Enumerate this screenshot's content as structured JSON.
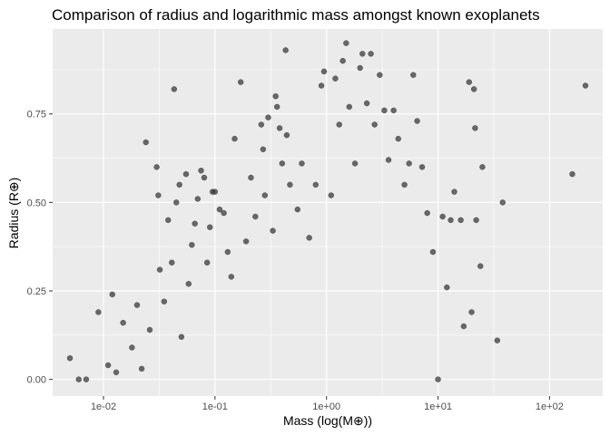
{
  "chart_data": {
    "type": "scatter",
    "title": "Comparison of radius and logarithmic mass amongst known exoplanets",
    "xlabel": "Mass (log(M⊕))",
    "ylabel": "Radius (R⊕)",
    "x_scale": "log10",
    "xlim": [
      0.0035,
      300
    ],
    "ylim": [
      -0.047,
      0.99
    ],
    "x_ticks": [
      {
        "value": 0.01,
        "label": "1e-02"
      },
      {
        "value": 0.1,
        "label": "1e-01"
      },
      {
        "value": 1,
        "label": "1e+00"
      },
      {
        "value": 10,
        "label": "1e+01"
      },
      {
        "value": 100,
        "label": "1e+02"
      }
    ],
    "y_ticks": [
      {
        "value": 0,
        "label": "0.00"
      },
      {
        "value": 0.25,
        "label": "0.25"
      },
      {
        "value": 0.5,
        "label": "0.50"
      },
      {
        "value": 0.75,
        "label": "0.75"
      }
    ],
    "grid": true,
    "legend": "none",
    "colors": {
      "panel": "#ebebeb",
      "grid_major": "#ffffff",
      "point": "#333333",
      "tick_text": "#4d4d4d"
    },
    "series": [
      {
        "points": [
          {
            "x": 0.005,
            "y": 0.06
          },
          {
            "x": 0.006,
            "y": 0.0
          },
          {
            "x": 0.007,
            "y": 0.0
          },
          {
            "x": 0.009,
            "y": 0.19
          },
          {
            "x": 0.011,
            "y": 0.04
          },
          {
            "x": 0.012,
            "y": 0.24
          },
          {
            "x": 0.013,
            "y": 0.02
          },
          {
            "x": 0.015,
            "y": 0.16
          },
          {
            "x": 0.018,
            "y": 0.09
          },
          {
            "x": 0.02,
            "y": 0.21
          },
          {
            "x": 0.022,
            "y": 0.03
          },
          {
            "x": 0.024,
            "y": 0.67
          },
          {
            "x": 0.026,
            "y": 0.14
          },
          {
            "x": 0.03,
            "y": 0.6
          },
          {
            "x": 0.031,
            "y": 0.52
          },
          {
            "x": 0.032,
            "y": 0.31
          },
          {
            "x": 0.035,
            "y": 0.22
          },
          {
            "x": 0.038,
            "y": 0.45
          },
          {
            "x": 0.041,
            "y": 0.33
          },
          {
            "x": 0.043,
            "y": 0.82
          },
          {
            "x": 0.045,
            "y": 0.5
          },
          {
            "x": 0.048,
            "y": 0.55
          },
          {
            "x": 0.05,
            "y": 0.12
          },
          {
            "x": 0.055,
            "y": 0.58
          },
          {
            "x": 0.058,
            "y": 0.27
          },
          {
            "x": 0.062,
            "y": 0.38
          },
          {
            "x": 0.066,
            "y": 0.44
          },
          {
            "x": 0.07,
            "y": 0.51
          },
          {
            "x": 0.075,
            "y": 0.59
          },
          {
            "x": 0.08,
            "y": 0.57
          },
          {
            "x": 0.085,
            "y": 0.33
          },
          {
            "x": 0.09,
            "y": 0.43
          },
          {
            "x": 0.095,
            "y": 0.53
          },
          {
            "x": 0.1,
            "y": 0.53
          },
          {
            "x": 0.11,
            "y": 0.48
          },
          {
            "x": 0.12,
            "y": 0.47
          },
          {
            "x": 0.13,
            "y": 0.36
          },
          {
            "x": 0.14,
            "y": 0.29
          },
          {
            "x": 0.15,
            "y": 0.68
          },
          {
            "x": 0.17,
            "y": 0.84
          },
          {
            "x": 0.19,
            "y": 0.39
          },
          {
            "x": 0.21,
            "y": 0.57
          },
          {
            "x": 0.23,
            "y": 0.46
          },
          {
            "x": 0.26,
            "y": 0.72
          },
          {
            "x": 0.27,
            "y": 0.65
          },
          {
            "x": 0.28,
            "y": 0.52
          },
          {
            "x": 0.3,
            "y": 0.74
          },
          {
            "x": 0.33,
            "y": 0.42
          },
          {
            "x": 0.35,
            "y": 0.8
          },
          {
            "x": 0.36,
            "y": 0.77
          },
          {
            "x": 0.38,
            "y": 0.71
          },
          {
            "x": 0.4,
            "y": 0.61
          },
          {
            "x": 0.43,
            "y": 0.93
          },
          {
            "x": 0.44,
            "y": 0.69
          },
          {
            "x": 0.47,
            "y": 0.55
          },
          {
            "x": 0.55,
            "y": 0.48
          },
          {
            "x": 0.6,
            "y": 0.61
          },
          {
            "x": 0.7,
            "y": 0.4
          },
          {
            "x": 0.8,
            "y": 0.55
          },
          {
            "x": 0.9,
            "y": 0.83
          },
          {
            "x": 0.95,
            "y": 0.87
          },
          {
            "x": 1.1,
            "y": 0.52
          },
          {
            "x": 1.2,
            "y": 0.85
          },
          {
            "x": 1.3,
            "y": 0.72
          },
          {
            "x": 1.4,
            "y": 0.9
          },
          {
            "x": 1.5,
            "y": 0.95
          },
          {
            "x": 1.6,
            "y": 0.77
          },
          {
            "x": 1.8,
            "y": 0.61
          },
          {
            "x": 2.0,
            "y": 0.88
          },
          {
            "x": 2.1,
            "y": 0.92
          },
          {
            "x": 2.3,
            "y": 0.78
          },
          {
            "x": 2.5,
            "y": 0.92
          },
          {
            "x": 2.7,
            "y": 0.72
          },
          {
            "x": 3.0,
            "y": 0.86
          },
          {
            "x": 3.3,
            "y": 0.76
          },
          {
            "x": 3.6,
            "y": 0.62
          },
          {
            "x": 4.0,
            "y": 0.76
          },
          {
            "x": 4.4,
            "y": 0.68
          },
          {
            "x": 5.0,
            "y": 0.55
          },
          {
            "x": 5.5,
            "y": 0.61
          },
          {
            "x": 6.0,
            "y": 0.86
          },
          {
            "x": 6.5,
            "y": 0.73
          },
          {
            "x": 7.2,
            "y": 0.6
          },
          {
            "x": 8.0,
            "y": 0.47
          },
          {
            "x": 9.0,
            "y": 0.36
          },
          {
            "x": 10.0,
            "y": 0.0
          },
          {
            "x": 11.0,
            "y": 0.46
          },
          {
            "x": 12.0,
            "y": 0.26
          },
          {
            "x": 13.0,
            "y": 0.45
          },
          {
            "x": 14.0,
            "y": 0.53
          },
          {
            "x": 16.0,
            "y": 0.45
          },
          {
            "x": 17.0,
            "y": 0.15
          },
          {
            "x": 19.0,
            "y": 0.84
          },
          {
            "x": 20.0,
            "y": 0.19
          },
          {
            "x": 21.0,
            "y": 0.82
          },
          {
            "x": 21.5,
            "y": 0.71
          },
          {
            "x": 22.0,
            "y": 0.45
          },
          {
            "x": 24.0,
            "y": 0.32
          },
          {
            "x": 25.0,
            "y": 0.6
          },
          {
            "x": 34.0,
            "y": 0.11
          },
          {
            "x": 38.0,
            "y": 0.5
          },
          {
            "x": 160.0,
            "y": 0.58
          },
          {
            "x": 210.0,
            "y": 0.83
          }
        ]
      }
    ]
  }
}
